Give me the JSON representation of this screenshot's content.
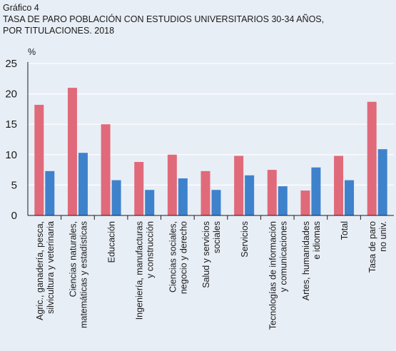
{
  "figure_label": "Gráfico 4",
  "title_lines": [
    "TASA DE PARO POBLACIÓN CON ESTUDIOS UNIVERSITARIOS 30-34 AÑOS,",
    "POR TITULACIONES. 2018"
  ],
  "colors": {
    "series_a": "#e06a7a",
    "series_b": "#3f82cc",
    "background": "#e8eef6",
    "grid": "#ffffff"
  },
  "chart_data": {
    "type": "bar",
    "ylabel": "%",
    "ylim": [
      0,
      25
    ],
    "yticks": [
      0,
      5,
      10,
      15,
      20,
      25
    ],
    "grid": true,
    "legend": "none",
    "categories": [
      [
        "Agric., ganadería, pesca,",
        "silvicultura y veterinaria"
      ],
      [
        "Ciencias naturales,",
        "matemáticas y estadísticas"
      ],
      [
        "Educación"
      ],
      [
        "Ingeniería, manufacturas",
        "y construcción"
      ],
      [
        "Ciencias sociales,",
        "negocio y derecho"
      ],
      [
        "Salud y servicios",
        "sociales"
      ],
      [
        "Servicios"
      ],
      [
        "Tecnologías de información",
        "y comunicaciones"
      ],
      [
        "Artes, humanidades",
        "e idiomas"
      ],
      [
        "Total"
      ],
      [
        "Tasa de paro",
        "no univ."
      ]
    ],
    "series": [
      {
        "values": [
          18.2,
          21.0,
          15.0,
          8.8,
          10.0,
          7.3,
          9.8,
          7.5,
          4.1,
          9.8,
          18.7
        ]
      },
      {
        "values": [
          7.3,
          10.3,
          5.8,
          4.2,
          6.1,
          4.2,
          6.6,
          4.8,
          7.9,
          5.8,
          10.9
        ]
      }
    ]
  }
}
